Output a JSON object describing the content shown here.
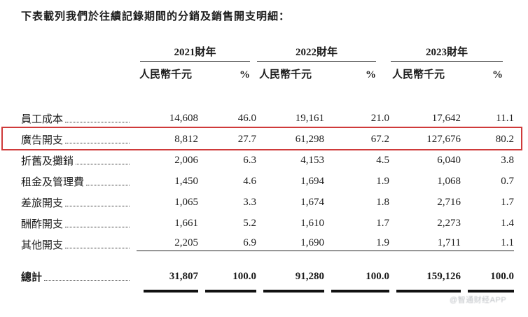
{
  "page": {
    "title": "下表載列我們於往績記錄期間的分銷及銷售開支明細：",
    "watermark": "@智通财经APP"
  },
  "colors": {
    "highlight_box": "#cf3a3a",
    "text": "#1c1c1c",
    "watermark": "#8f959c"
  },
  "highlight": {
    "row_label": "廣告開支",
    "color": "#cf3a3a"
  },
  "table": {
    "year_groups": [
      {
        "label": "2021財年"
      },
      {
        "label": "2022財年"
      },
      {
        "label": "2023財年"
      }
    ],
    "subheaders": {
      "amount": "人民幣千元",
      "percent": "%"
    },
    "rows": [
      {
        "label": "員工成本",
        "values": [
          "14,608",
          "46.0",
          "19,161",
          "21.0",
          "17,642",
          "11.1"
        ],
        "highlighted": false
      },
      {
        "label": "廣告開支",
        "values": [
          "8,812",
          "27.7",
          "61,298",
          "67.2",
          "127,676",
          "80.2"
        ],
        "highlighted": true
      },
      {
        "label": "折舊及攤銷",
        "values": [
          "2,006",
          "6.3",
          "4,153",
          "4.5",
          "6,040",
          "3.8"
        ],
        "highlighted": false
      },
      {
        "label": "租金及管理費",
        "values": [
          "1,450",
          "4.6",
          "1,694",
          "1.9",
          "1,068",
          "0.7"
        ],
        "highlighted": false
      },
      {
        "label": "差旅開支",
        "values": [
          "1,065",
          "3.3",
          "1,674",
          "1.8",
          "2,716",
          "1.7"
        ],
        "highlighted": false
      },
      {
        "label": "酬酢開支",
        "values": [
          "1,661",
          "5.2",
          "1,610",
          "1.7",
          "2,273",
          "1.4"
        ],
        "highlighted": false
      },
      {
        "label": "其他開支",
        "values": [
          "2,205",
          "6.9",
          "1,690",
          "1.9",
          "1,711",
          "1.1"
        ],
        "highlighted": false
      }
    ],
    "total": {
      "label": "總計",
      "values": [
        "31,807",
        "100.0",
        "91,280",
        "100.0",
        "159,126",
        "100.0"
      ]
    }
  }
}
